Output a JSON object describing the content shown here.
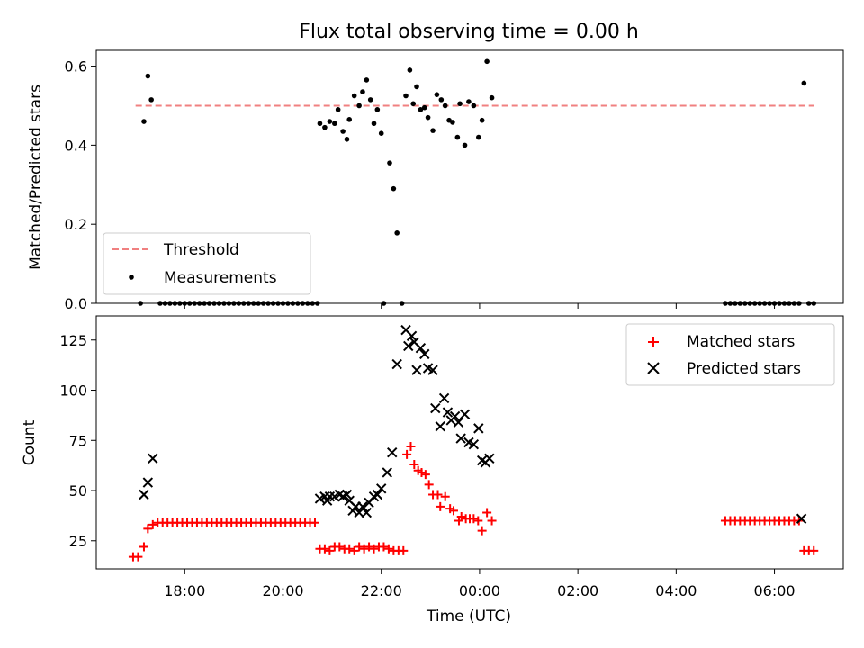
{
  "title": "Flux total observing time = 0.00 h",
  "colors": {
    "threshold": "#f08080",
    "measurements": "#000000",
    "matched": "#ff0000",
    "predicted": "#000000"
  },
  "chart_data": [
    {
      "type": "scatter",
      "ylabel": "Matched/Predicted stars",
      "xlim_hours": [
        16.2,
        31.4
      ],
      "ylim": [
        0,
        0.64
      ],
      "yticks": [
        "0.0",
        "0.2",
        "0.4",
        "0.6"
      ],
      "legend": {
        "placement": "lower-left",
        "entries": [
          "Threshold",
          "Measurements"
        ]
      },
      "threshold": {
        "name": "Threshold",
        "value": 0.5,
        "x_range_hours": [
          17.0,
          30.8
        ]
      },
      "series": [
        {
          "name": "Measurements",
          "points": [
            [
              17.1,
              0.0
            ],
            [
              17.17,
              0.46
            ],
            [
              17.25,
              0.575
            ],
            [
              17.32,
              0.515
            ],
            [
              17.5,
              0.0
            ],
            [
              17.6,
              0.0
            ],
            [
              17.7,
              0.0
            ],
            [
              17.8,
              0.0
            ],
            [
              17.9,
              0.0
            ],
            [
              18.0,
              0.0
            ],
            [
              18.1,
              0.0
            ],
            [
              18.2,
              0.0
            ],
            [
              18.3,
              0.0
            ],
            [
              18.4,
              0.0
            ],
            [
              18.5,
              0.0
            ],
            [
              18.6,
              0.0
            ],
            [
              18.7,
              0.0
            ],
            [
              18.8,
              0.0
            ],
            [
              18.9,
              0.0
            ],
            [
              19.0,
              0.0
            ],
            [
              19.1,
              0.0
            ],
            [
              19.2,
              0.0
            ],
            [
              19.3,
              0.0
            ],
            [
              19.4,
              0.0
            ],
            [
              19.5,
              0.0
            ],
            [
              19.6,
              0.0
            ],
            [
              19.7,
              0.0
            ],
            [
              19.8,
              0.0
            ],
            [
              19.9,
              0.0
            ],
            [
              20.0,
              0.0
            ],
            [
              20.1,
              0.0
            ],
            [
              20.2,
              0.0
            ],
            [
              20.3,
              0.0
            ],
            [
              20.4,
              0.0
            ],
            [
              20.5,
              0.0
            ],
            [
              20.6,
              0.0
            ],
            [
              20.7,
              0.0
            ],
            [
              20.75,
              0.455
            ],
            [
              20.85,
              0.445
            ],
            [
              20.95,
              0.46
            ],
            [
              21.05,
              0.455
            ],
            [
              21.12,
              0.49
            ],
            [
              21.22,
              0.435
            ],
            [
              21.3,
              0.415
            ],
            [
              21.35,
              0.465
            ],
            [
              21.45,
              0.525
            ],
            [
              21.55,
              0.5
            ],
            [
              21.62,
              0.535
            ],
            [
              21.7,
              0.565
            ],
            [
              21.78,
              0.515
            ],
            [
              21.85,
              0.455
            ],
            [
              21.92,
              0.49
            ],
            [
              22.0,
              0.43
            ],
            [
              22.05,
              0.0
            ],
            [
              22.17,
              0.355
            ],
            [
              22.25,
              0.29
            ],
            [
              22.32,
              0.178
            ],
            [
              22.42,
              0.0
            ],
            [
              22.5,
              0.525
            ],
            [
              22.58,
              0.59
            ],
            [
              22.65,
              0.505
            ],
            [
              22.72,
              0.548
            ],
            [
              22.8,
              0.49
            ],
            [
              22.88,
              0.495
            ],
            [
              22.95,
              0.47
            ],
            [
              23.05,
              0.437
            ],
            [
              23.13,
              0.528
            ],
            [
              23.22,
              0.515
            ],
            [
              23.3,
              0.5
            ],
            [
              23.38,
              0.463
            ],
            [
              23.45,
              0.458
            ],
            [
              23.55,
              0.42
            ],
            [
              23.6,
              0.505
            ],
            [
              23.7,
              0.4
            ],
            [
              23.78,
              0.51
            ],
            [
              23.88,
              0.5
            ],
            [
              23.98,
              0.42
            ],
            [
              24.05,
              0.463
            ],
            [
              24.15,
              0.612
            ],
            [
              24.25,
              0.52
            ],
            [
              29.0,
              0.0
            ],
            [
              29.1,
              0.0
            ],
            [
              29.2,
              0.0
            ],
            [
              29.3,
              0.0
            ],
            [
              29.4,
              0.0
            ],
            [
              29.5,
              0.0
            ],
            [
              29.6,
              0.0
            ],
            [
              29.7,
              0.0
            ],
            [
              29.8,
              0.0
            ],
            [
              29.9,
              0.0
            ],
            [
              30.0,
              0.0
            ],
            [
              30.1,
              0.0
            ],
            [
              30.2,
              0.0
            ],
            [
              30.3,
              0.0
            ],
            [
              30.4,
              0.0
            ],
            [
              30.5,
              0.0
            ],
            [
              30.6,
              0.557
            ],
            [
              30.7,
              0.0
            ],
            [
              30.8,
              0.0
            ]
          ]
        }
      ]
    },
    {
      "type": "scatter",
      "xlabel": "Time (UTC)",
      "ylabel": "Count",
      "xlim_hours": [
        16.2,
        31.4
      ],
      "ylim": [
        11,
        137
      ],
      "yticks": [
        "25",
        "50",
        "75",
        "100",
        "125"
      ],
      "xticks": [
        "18:00",
        "20:00",
        "22:00",
        "00:00",
        "02:00",
        "04:00",
        "06:00"
      ],
      "legend": {
        "placement": "upper-right",
        "entries": [
          "Matched stars",
          "Predicted stars"
        ]
      },
      "series": [
        {
          "name": "Matched stars",
          "points": [
            [
              16.95,
              17
            ],
            [
              17.05,
              17
            ],
            [
              17.17,
              22
            ],
            [
              17.25,
              31
            ],
            [
              17.35,
              33
            ],
            [
              17.45,
              34
            ],
            [
              17.55,
              34
            ],
            [
              17.65,
              34
            ],
            [
              17.75,
              34
            ],
            [
              17.85,
              34
            ],
            [
              17.95,
              34
            ],
            [
              18.05,
              34
            ],
            [
              18.15,
              34
            ],
            [
              18.25,
              34
            ],
            [
              18.35,
              34
            ],
            [
              18.45,
              34
            ],
            [
              18.55,
              34
            ],
            [
              18.65,
              34
            ],
            [
              18.75,
              34
            ],
            [
              18.85,
              34
            ],
            [
              18.95,
              34
            ],
            [
              19.05,
              34
            ],
            [
              19.15,
              34
            ],
            [
              19.25,
              34
            ],
            [
              19.35,
              34
            ],
            [
              19.45,
              34
            ],
            [
              19.55,
              34
            ],
            [
              19.65,
              34
            ],
            [
              19.75,
              34
            ],
            [
              19.85,
              34
            ],
            [
              19.95,
              34
            ],
            [
              20.05,
              34
            ],
            [
              20.15,
              34
            ],
            [
              20.25,
              34
            ],
            [
              20.35,
              34
            ],
            [
              20.45,
              34
            ],
            [
              20.55,
              34
            ],
            [
              20.65,
              34
            ],
            [
              20.75,
              21
            ],
            [
              20.85,
              21
            ],
            [
              20.95,
              20
            ],
            [
              21.05,
              22
            ],
            [
              21.15,
              22
            ],
            [
              21.25,
              21
            ],
            [
              21.35,
              21
            ],
            [
              21.45,
              20
            ],
            [
              21.55,
              22
            ],
            [
              21.65,
              21
            ],
            [
              21.75,
              22
            ],
            [
              21.85,
              21
            ],
            [
              21.95,
              22
            ],
            [
              22.05,
              22
            ],
            [
              22.15,
              21
            ],
            [
              22.25,
              20
            ],
            [
              22.35,
              20
            ],
            [
              22.45,
              20
            ],
            [
              22.52,
              68
            ],
            [
              22.6,
              72
            ],
            [
              22.67,
              63
            ],
            [
              22.75,
              60
            ],
            [
              22.82,
              59
            ],
            [
              22.9,
              58
            ],
            [
              22.97,
              53
            ],
            [
              23.05,
              48
            ],
            [
              23.15,
              48
            ],
            [
              23.2,
              42
            ],
            [
              23.3,
              47
            ],
            [
              23.4,
              41
            ],
            [
              23.47,
              40
            ],
            [
              23.58,
              35
            ],
            [
              23.63,
              37
            ],
            [
              23.72,
              36
            ],
            [
              23.8,
              36
            ],
            [
              23.88,
              36
            ],
            [
              23.97,
              35
            ],
            [
              24.05,
              30
            ],
            [
              24.15,
              39
            ],
            [
              24.25,
              35
            ],
            [
              29.0,
              35
            ],
            [
              29.1,
              35
            ],
            [
              29.2,
              35
            ],
            [
              29.3,
              35
            ],
            [
              29.4,
              35
            ],
            [
              29.5,
              35
            ],
            [
              29.6,
              35
            ],
            [
              29.7,
              35
            ],
            [
              29.8,
              35
            ],
            [
              29.9,
              35
            ],
            [
              30.0,
              35
            ],
            [
              30.1,
              35
            ],
            [
              30.2,
              35
            ],
            [
              30.3,
              35
            ],
            [
              30.4,
              35
            ],
            [
              30.5,
              35
            ],
            [
              30.6,
              20
            ],
            [
              30.7,
              20
            ],
            [
              30.8,
              20
            ]
          ]
        },
        {
          "name": "Predicted stars",
          "points": [
            [
              17.17,
              48
            ],
            [
              17.25,
              54
            ],
            [
              17.35,
              66
            ],
            [
              20.75,
              46
            ],
            [
              20.85,
              47
            ],
            [
              20.9,
              45
            ],
            [
              20.95,
              47
            ],
            [
              21.05,
              47
            ],
            [
              21.15,
              48
            ],
            [
              21.22,
              47
            ],
            [
              21.3,
              48
            ],
            [
              21.35,
              45
            ],
            [
              21.42,
              40
            ],
            [
              21.48,
              42
            ],
            [
              21.55,
              39
            ],
            [
              21.62,
              42
            ],
            [
              21.7,
              39
            ],
            [
              21.75,
              44
            ],
            [
              21.85,
              47
            ],
            [
              21.92,
              48
            ],
            [
              22.0,
              51
            ],
            [
              22.12,
              59
            ],
            [
              22.22,
              69
            ],
            [
              22.32,
              113
            ],
            [
              22.5,
              130
            ],
            [
              22.55,
              122
            ],
            [
              22.62,
              127
            ],
            [
              22.67,
              124
            ],
            [
              22.72,
              110
            ],
            [
              22.8,
              121
            ],
            [
              22.88,
              118
            ],
            [
              22.95,
              111
            ],
            [
              23.05,
              110
            ],
            [
              23.1,
              91
            ],
            [
              23.2,
              82
            ],
            [
              23.28,
              96
            ],
            [
              23.35,
              89
            ],
            [
              23.42,
              85
            ],
            [
              23.5,
              87
            ],
            [
              23.57,
              84
            ],
            [
              23.62,
              76
            ],
            [
              23.7,
              88
            ],
            [
              23.78,
              74
            ],
            [
              23.88,
              73
            ],
            [
              23.98,
              81
            ],
            [
              24.05,
              65
            ],
            [
              24.12,
              64
            ],
            [
              24.2,
              66
            ],
            [
              30.55,
              36
            ]
          ]
        }
      ]
    }
  ]
}
